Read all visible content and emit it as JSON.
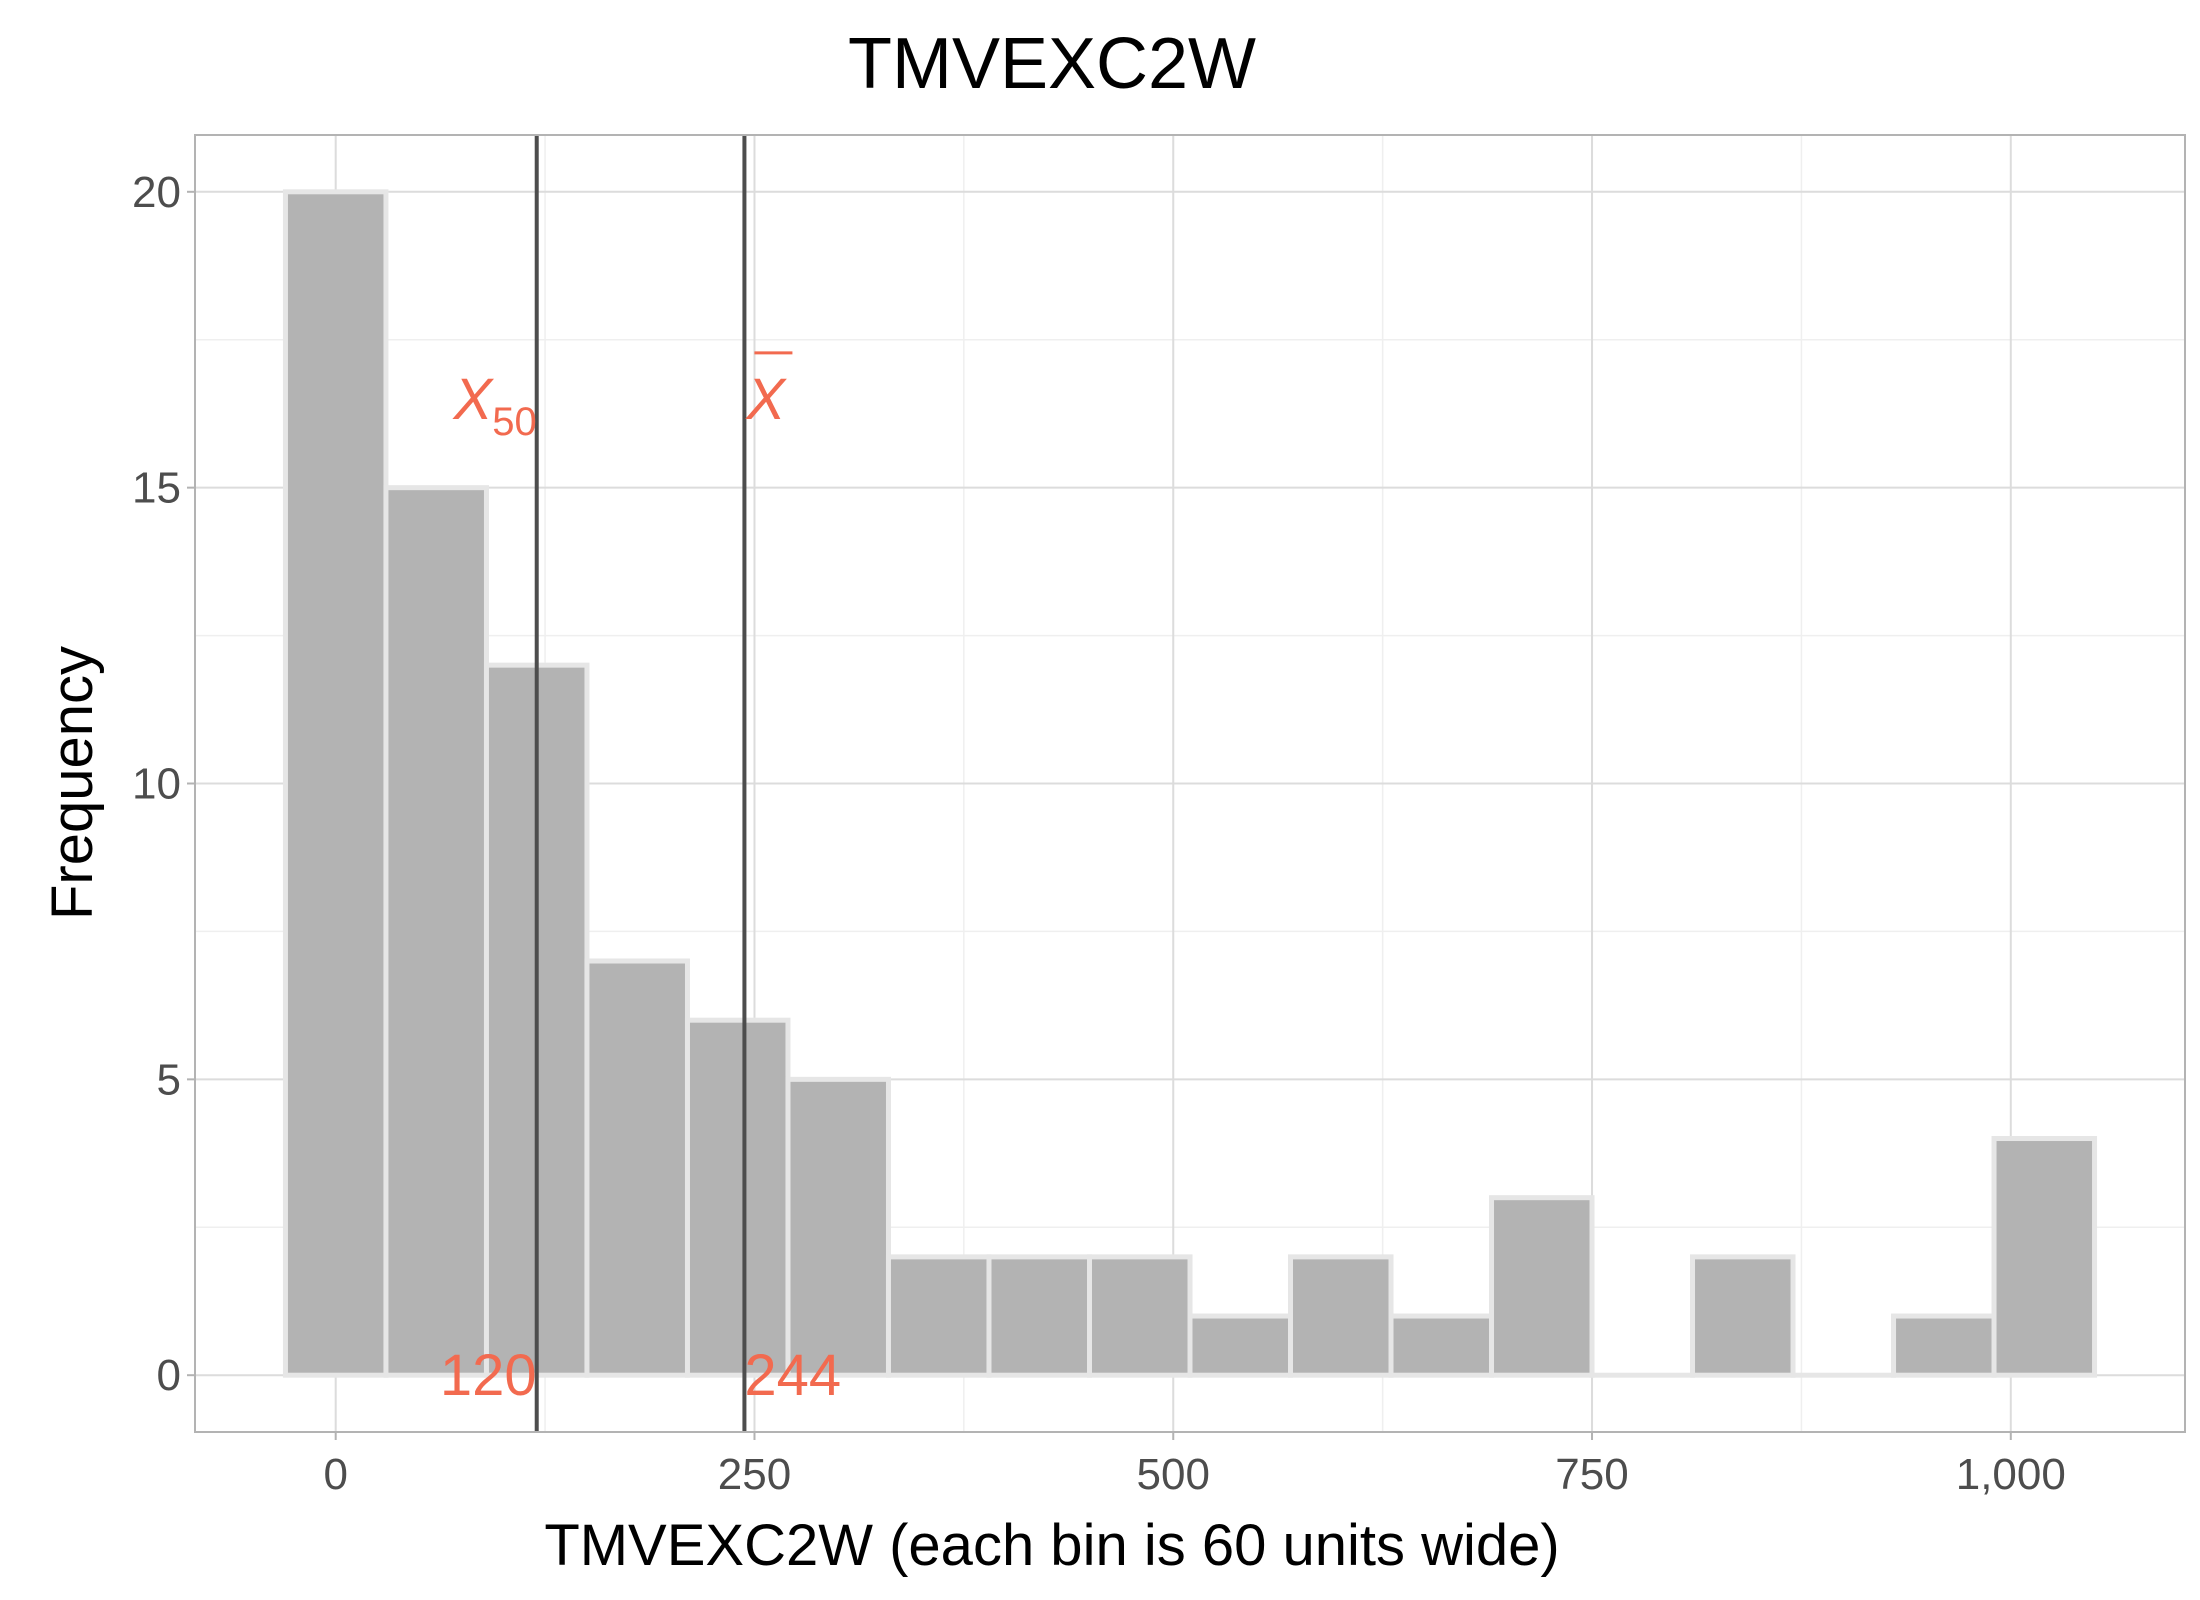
{
  "chart_data": {
    "type": "bar",
    "subtype": "histogram",
    "title": "TMVEXC2W",
    "xlabel": "TMVEXC2W (each bin is 60 units wide)",
    "ylabel": "Frequency",
    "bin_width": 60,
    "bins": [
      {
        "center": 0,
        "count": 20
      },
      {
        "center": 60,
        "count": 15
      },
      {
        "center": 120,
        "count": 12
      },
      {
        "center": 180,
        "count": 7
      },
      {
        "center": 240,
        "count": 6
      },
      {
        "center": 300,
        "count": 5
      },
      {
        "center": 360,
        "count": 2
      },
      {
        "center": 420,
        "count": 2
      },
      {
        "center": 480,
        "count": 2
      },
      {
        "center": 540,
        "count": 1
      },
      {
        "center": 600,
        "count": 2
      },
      {
        "center": 660,
        "count": 1
      },
      {
        "center": 720,
        "count": 3
      },
      {
        "center": 780,
        "count": 0
      },
      {
        "center": 840,
        "count": 2
      },
      {
        "center": 900,
        "count": 0
      },
      {
        "center": 960,
        "count": 1
      },
      {
        "center": 1020,
        "count": 4
      }
    ],
    "xlim": [
      -84,
      1104
    ],
    "ylim": [
      -0.96,
      20.96
    ],
    "x_ticks": [
      {
        "value": 0,
        "label": "0"
      },
      {
        "value": 250,
        "label": "250"
      },
      {
        "value": 500,
        "label": "500"
      },
      {
        "value": 750,
        "label": "750"
      },
      {
        "value": 1000,
        "label": "1,000"
      }
    ],
    "y_ticks": [
      {
        "value": 0,
        "label": "0"
      },
      {
        "value": 5,
        "label": "5"
      },
      {
        "value": 10,
        "label": "10"
      },
      {
        "value": 15,
        "label": "15"
      },
      {
        "value": 20,
        "label": "20"
      }
    ],
    "grid": true,
    "reference_lines": [
      {
        "x": 120,
        "symbol": "X",
        "subscript": "50",
        "overline": false,
        "value_label": "120",
        "label_y": 16.5
      },
      {
        "x": 244,
        "symbol": "X",
        "subscript": "",
        "overline": true,
        "value_label": "244",
        "label_y": 16.5
      }
    ],
    "colors": {
      "bar_fill": "#b3b3b3",
      "bar_stroke": "#e6e6e6",
      "reference_line": "#4d4d4d",
      "annotation": "#f26a4f",
      "grid_major": "#dcdcdc",
      "grid_minor": "#efefef",
      "panel_border": "#b3b3b3"
    }
  }
}
